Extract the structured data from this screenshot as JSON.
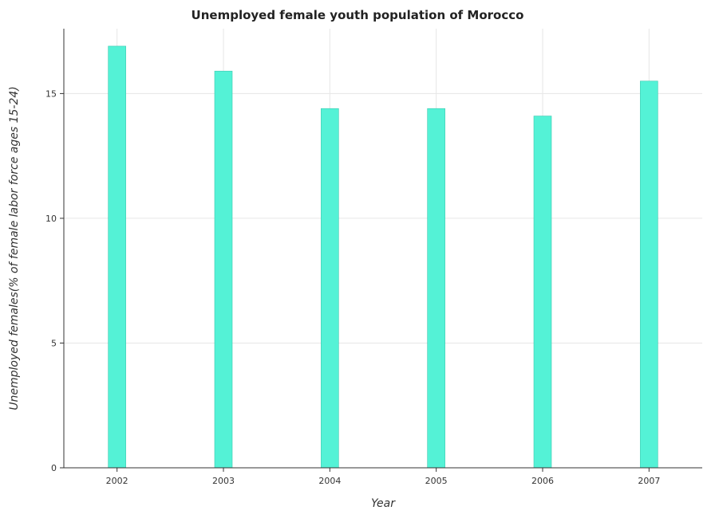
{
  "chart_data": {
    "type": "bar",
    "title": "Unemployed female youth population of Morocco",
    "xlabel": "Year",
    "ylabel": "Unemployed females(% of female labor force ages 15-24)",
    "categories": [
      "2002",
      "2003",
      "2004",
      "2005",
      "2006",
      "2007"
    ],
    "values": [
      16.9,
      15.9,
      14.4,
      14.4,
      14.1,
      15.5
    ],
    "ylim": [
      0,
      17.6
    ],
    "yticks": [
      0,
      5,
      10,
      15
    ],
    "grid": true,
    "bar_color": "#54f2d6",
    "bar_edge_color": "#3cc9b0"
  }
}
